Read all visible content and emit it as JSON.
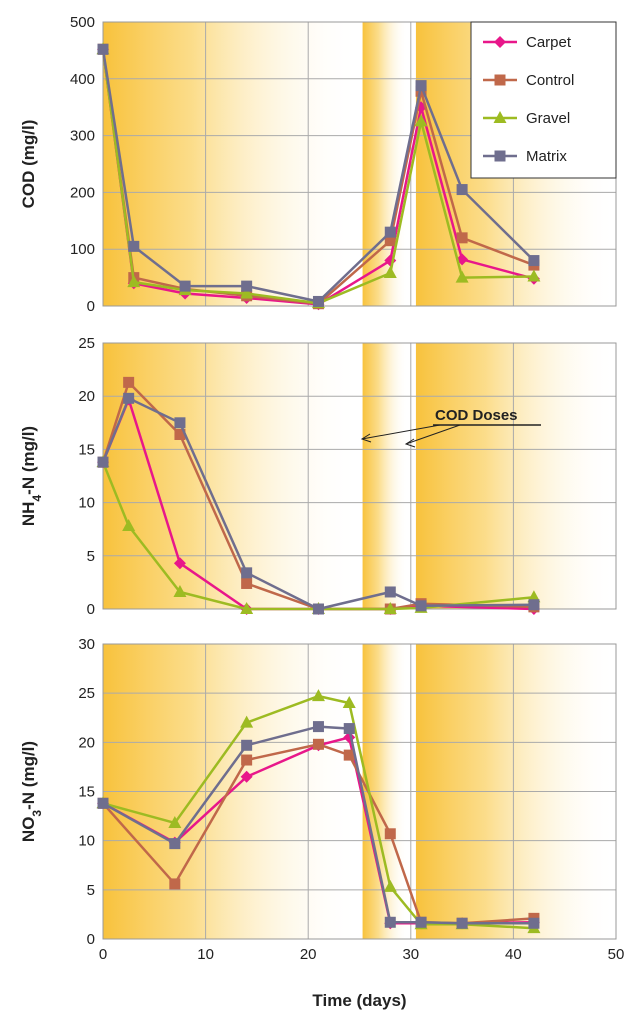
{
  "chart_data": [
    {
      "type": "line",
      "panel": "COD",
      "ylabel": "COD (mg/l)",
      "ylim": [
        0,
        500
      ],
      "yticks": [
        "0",
        "100",
        "200",
        "300",
        "400",
        "500"
      ],
      "xlim": [
        0,
        50
      ],
      "grid": true,
      "legend_position": "top-right",
      "legend": [
        "Carpet",
        "Control",
        "Gravel",
        "Matrix"
      ],
      "series": [
        {
          "name": "Carpet",
          "x": [
            0,
            3,
            8,
            14,
            21,
            28,
            31,
            35,
            42
          ],
          "y": [
            452,
            40,
            22,
            14,
            3,
            80,
            350,
            82,
            48
          ]
        },
        {
          "name": "Control",
          "x": [
            0,
            3,
            8,
            14,
            21,
            28,
            31,
            35,
            42
          ],
          "y": [
            452,
            50,
            30,
            18,
            4,
            115,
            378,
            120,
            72
          ]
        },
        {
          "name": "Gravel",
          "x": [
            0,
            3,
            8,
            14,
            21,
            28,
            31,
            35,
            42
          ],
          "y": [
            452,
            42,
            28,
            22,
            5,
            58,
            325,
            50,
            52
          ]
        },
        {
          "name": "Matrix",
          "x": [
            0,
            3,
            8,
            14,
            21,
            28,
            31,
            35,
            42
          ],
          "y": [
            452,
            105,
            35,
            35,
            8,
            130,
            388,
            205,
            80
          ]
        }
      ]
    },
    {
      "type": "line",
      "panel": "NH4-N",
      "ylabel_main": "NH",
      "ylabel_sub": "4",
      "ylabel_rest": "-N (mg/l)",
      "ylim": [
        0,
        25
      ],
      "yticks": [
        "0",
        "5",
        "10",
        "15",
        "20",
        "25"
      ],
      "xlim": [
        0,
        50
      ],
      "grid": true,
      "annotation": "COD Doses",
      "series": [
        {
          "name": "Carpet",
          "x": [
            0,
            2.5,
            7.5,
            14,
            21,
            28,
            31,
            42
          ],
          "y": [
            13.8,
            19.7,
            4.3,
            0,
            0,
            0,
            0.3,
            0
          ]
        },
        {
          "name": "Control",
          "x": [
            0,
            2.5,
            7.5,
            14,
            21,
            28,
            31,
            42
          ],
          "y": [
            13.8,
            21.3,
            16.4,
            2.4,
            0,
            0,
            0.5,
            0.2
          ]
        },
        {
          "name": "Gravel",
          "x": [
            0,
            2.5,
            7.5,
            14,
            21,
            28,
            31,
            42
          ],
          "y": [
            13.8,
            7.8,
            1.6,
            0,
            0,
            0,
            0.1,
            1.1
          ]
        },
        {
          "name": "Matrix",
          "x": [
            0,
            2.5,
            7.5,
            14,
            21,
            28,
            31,
            42
          ],
          "y": [
            13.8,
            19.8,
            17.5,
            3.4,
            0,
            1.6,
            0.3,
            0.4
          ]
        }
      ]
    },
    {
      "type": "line",
      "panel": "NO3-N",
      "ylabel_main": "NO",
      "ylabel_sub": "3",
      "ylabel_rest": "-N (mg/l)",
      "xlabel": "Time (days)",
      "ylim": [
        0,
        30
      ],
      "yticks": [
        "0",
        "5",
        "10",
        "15",
        "20",
        "25",
        "30"
      ],
      "xlim": [
        0,
        50
      ],
      "xticks": [
        "0",
        "10",
        "20",
        "30",
        "40",
        "50"
      ],
      "grid": true,
      "series": [
        {
          "name": "Carpet",
          "x": [
            0,
            7,
            14,
            21,
            24,
            28,
            31,
            35,
            42
          ],
          "y": [
            13.8,
            9.8,
            16.5,
            19.7,
            20.5,
            1.6,
            1.6,
            1.6,
            1.7
          ]
        },
        {
          "name": "Control",
          "x": [
            0,
            7,
            14,
            21,
            24,
            28,
            31,
            35,
            42
          ],
          "y": [
            13.8,
            5.6,
            18.2,
            19.8,
            18.7,
            10.7,
            1.7,
            1.6,
            2.1
          ]
        },
        {
          "name": "Gravel",
          "x": [
            0,
            7,
            14,
            21,
            24,
            28,
            31,
            35,
            42
          ],
          "y": [
            13.8,
            11.8,
            22.0,
            24.7,
            24.0,
            5.3,
            1.5,
            1.5,
            1.1
          ]
        },
        {
          "name": "Matrix",
          "x": [
            0,
            7,
            14,
            21,
            24,
            28,
            31,
            35,
            42
          ],
          "y": [
            13.8,
            9.7,
            19.7,
            21.6,
            21.4,
            1.7,
            1.7,
            1.6,
            1.6
          ]
        }
      ]
    }
  ],
  "styles": {
    "Carpet": {
      "color": "#e8178a",
      "marker": "diamond"
    },
    "Control": {
      "color": "#c0684a",
      "marker": "square"
    },
    "Gravel": {
      "color": "#9dbb22",
      "marker": "triangle"
    },
    "Matrix": {
      "color": "#6f6e8e",
      "marker": "square"
    },
    "band_color": "#f8c23c",
    "grid_color": "#aaaaaa"
  }
}
